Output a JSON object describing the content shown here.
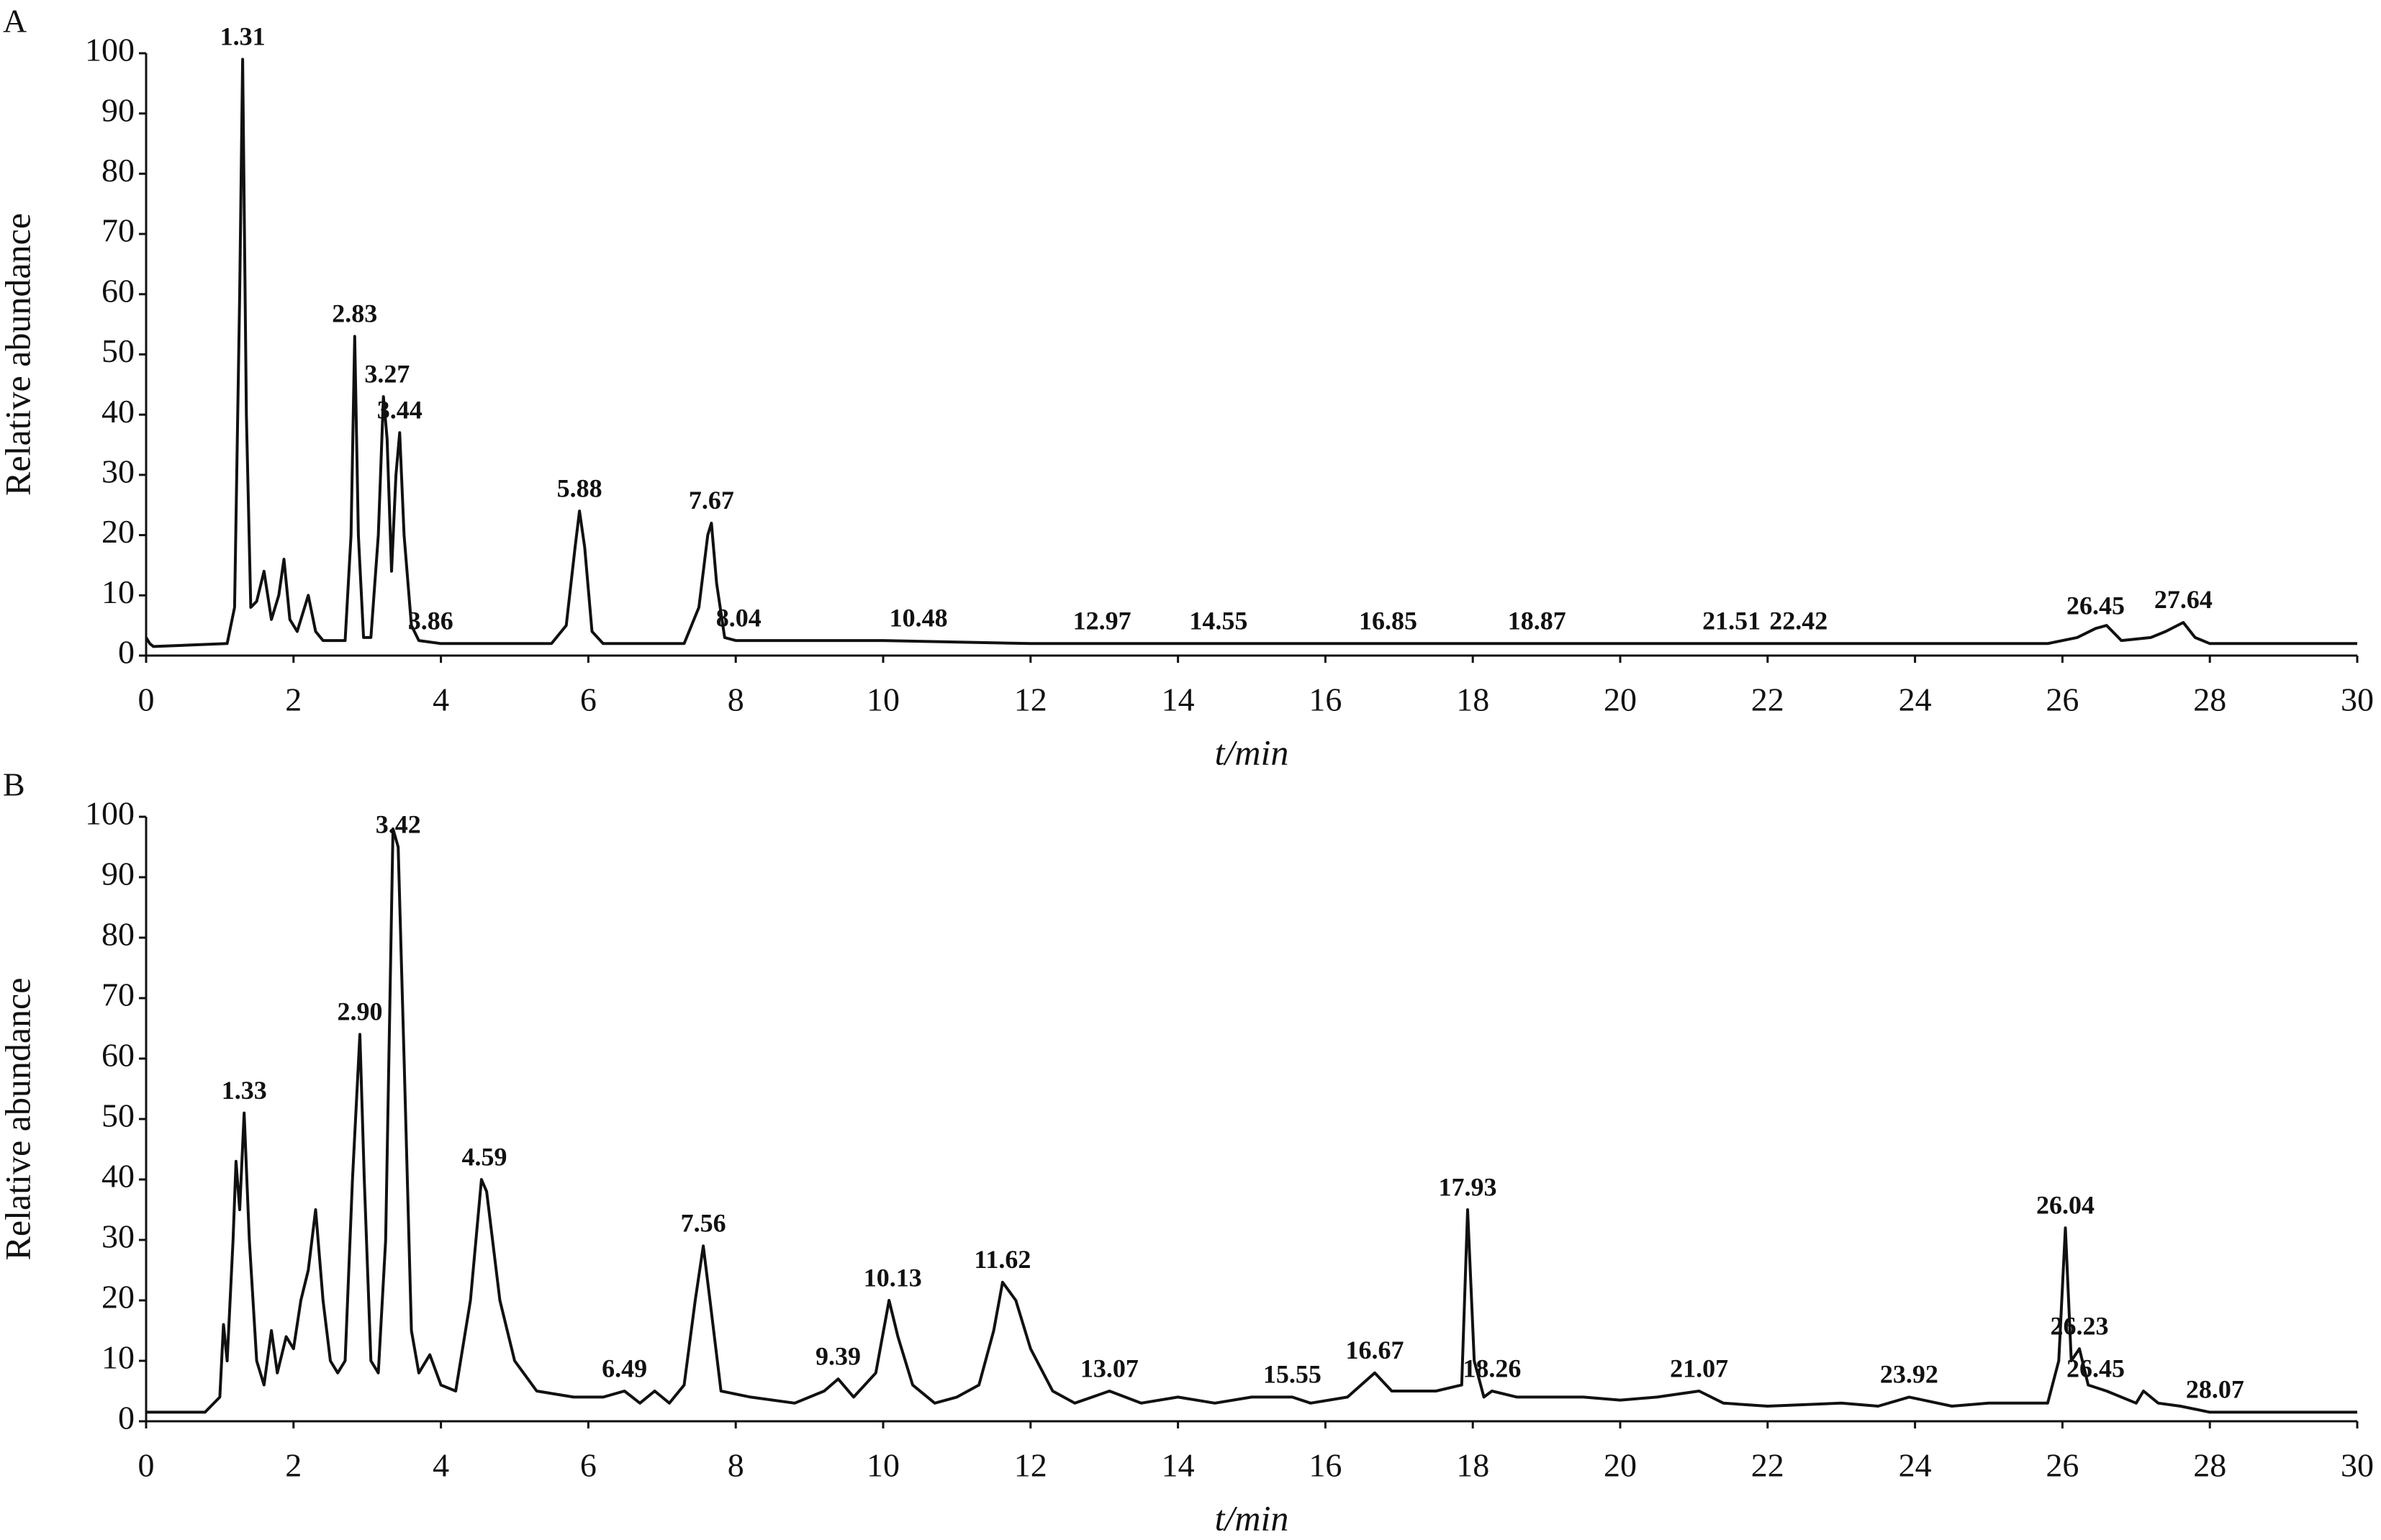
{
  "chart_data": [
    {
      "type": "line",
      "panel": "A",
      "xlabel": "t/min",
      "ylabel": "Relative abundance",
      "xlim": [
        0,
        30
      ],
      "xticks": [
        0,
        2,
        4,
        6,
        8,
        10,
        12,
        14,
        16,
        18,
        20,
        22,
        24,
        26,
        28,
        30
      ],
      "ylim": [
        0,
        100
      ],
      "yticks": [
        0,
        10,
        20,
        30,
        40,
        50,
        60,
        70,
        80,
        90,
        100
      ],
      "color": "#111111",
      "x": [
        0,
        0.05,
        0.1,
        1.1,
        1.2,
        1.27,
        1.31,
        1.36,
        1.42,
        1.5,
        1.6,
        1.7,
        1.8,
        1.87,
        1.95,
        2.05,
        2.2,
        2.3,
        2.4,
        2.7,
        2.78,
        2.83,
        2.88,
        2.95,
        3.05,
        3.15,
        3.22,
        3.27,
        3.33,
        3.39,
        3.44,
        3.5,
        3.6,
        3.7,
        4,
        5.5,
        5.7,
        5.82,
        5.88,
        5.95,
        6.05,
        6.2,
        7.3,
        7.5,
        7.62,
        7.67,
        7.74,
        7.85,
        8,
        10,
        12,
        14,
        16,
        18,
        20,
        22,
        24,
        25.8,
        26.2,
        26.45,
        26.6,
        26.8,
        27.2,
        27.4,
        27.64,
        27.8,
        28,
        30
      ],
      "values": [
        3,
        2,
        1.5,
        2,
        8,
        60,
        99,
        40,
        8,
        9,
        14,
        6,
        10,
        16,
        6,
        4,
        10,
        4,
        2.5,
        2.5,
        20,
        53,
        20,
        3,
        3,
        20,
        43,
        36,
        14,
        30,
        37,
        20,
        5,
        2.5,
        2,
        2,
        5,
        18,
        24,
        18,
        4,
        2,
        2,
        8,
        20,
        22,
        12,
        3,
        2.5,
        2.5,
        2,
        2,
        2,
        2,
        2,
        2,
        2,
        2,
        3,
        4.5,
        5,
        2.5,
        3,
        4,
        5.5,
        3,
        2,
        2
      ],
      "peak_labels": [
        {
          "x": 1.31,
          "y": 99,
          "label": "1.31"
        },
        {
          "x": 2.83,
          "y": 53,
          "label": "2.83"
        },
        {
          "x": 3.27,
          "y": 43,
          "label": "3.27"
        },
        {
          "x": 3.44,
          "y": 37,
          "label": "3.44"
        },
        {
          "x": 3.86,
          "y": 2,
          "label": "3.86"
        },
        {
          "x": 5.88,
          "y": 24,
          "label": "5.88"
        },
        {
          "x": 7.67,
          "y": 22,
          "label": "7.67"
        },
        {
          "x": 8.04,
          "y": 2.5,
          "label": "8.04"
        },
        {
          "x": 10.48,
          "y": 2.5,
          "label": "10.48"
        },
        {
          "x": 12.97,
          "y": 2,
          "label": "12.97"
        },
        {
          "x": 14.55,
          "y": 2,
          "label": "14.55"
        },
        {
          "x": 16.85,
          "y": 2,
          "label": "16.85"
        },
        {
          "x": 18.87,
          "y": 2,
          "label": "18.87"
        },
        {
          "x": 21.51,
          "y": 2,
          "label": "21.51"
        },
        {
          "x": 22.42,
          "y": 2,
          "label": "22.42"
        },
        {
          "x": 26.45,
          "y": 4.5,
          "label": "26.45"
        },
        {
          "x": 27.64,
          "y": 5.5,
          "label": "27.64"
        }
      ]
    },
    {
      "type": "line",
      "panel": "B",
      "xlabel": "t/min",
      "ylabel": "Relative abundance",
      "xlim": [
        0,
        30
      ],
      "xticks": [
        0,
        2,
        4,
        6,
        8,
        10,
        12,
        14,
        16,
        18,
        20,
        22,
        24,
        26,
        28,
        30
      ],
      "ylim": [
        0,
        100
      ],
      "yticks": [
        0,
        10,
        20,
        30,
        40,
        50,
        60,
        70,
        80,
        90,
        100
      ],
      "color": "#111111",
      "x": [
        0,
        0.8,
        1.0,
        1.05,
        1.1,
        1.18,
        1.22,
        1.27,
        1.33,
        1.4,
        1.5,
        1.6,
        1.7,
        1.78,
        1.9,
        2.0,
        2.1,
        2.2,
        2.3,
        2.4,
        2.5,
        2.6,
        2.7,
        2.8,
        2.9,
        2.96,
        3.05,
        3.15,
        3.25,
        3.35,
        3.42,
        3.5,
        3.6,
        3.7,
        3.85,
        4.0,
        4.2,
        4.4,
        4.55,
        4.62,
        4.8,
        5.0,
        5.3,
        5.8,
        6.2,
        6.49,
        6.7,
        6.9,
        7.1,
        7.3,
        7.45,
        7.56,
        7.65,
        7.8,
        8.2,
        8.8,
        9.2,
        9.39,
        9.6,
        9.9,
        10.08,
        10.2,
        10.4,
        10.7,
        11.0,
        11.3,
        11.5,
        11.62,
        11.8,
        12.0,
        12.3,
        12.6,
        13.07,
        13.5,
        14,
        14.5,
        15,
        15.55,
        15.8,
        16.3,
        16.67,
        16.9,
        17.5,
        17.85,
        17.93,
        18.02,
        18.15,
        18.26,
        18.6,
        19.5,
        20,
        20.5,
        21.07,
        21.4,
        22,
        23,
        23.5,
        23.92,
        24.5,
        25,
        25.8,
        25.95,
        26.04,
        26.12,
        26.23,
        26.35,
        26.6,
        27.0,
        27.1,
        27.3,
        27.6,
        28,
        30
      ],
      "values": [
        1.5,
        1.5,
        4,
        16,
        10,
        30,
        43,
        35,
        51,
        30,
        10,
        6,
        15,
        8,
        14,
        12,
        20,
        25,
        35,
        20,
        10,
        8,
        10,
        40,
        64,
        40,
        10,
        8,
        30,
        98,
        95,
        60,
        15,
        8,
        11,
        6,
        5,
        20,
        40,
        38,
        20,
        10,
        5,
        4,
        4,
        5,
        3,
        5,
        3,
        6,
        20,
        29,
        20,
        5,
        4,
        3,
        5,
        7,
        4,
        8,
        20,
        14,
        6,
        3,
        4,
        6,
        15,
        23,
        20,
        12,
        5,
        3,
        5,
        3,
        4,
        3,
        4,
        4,
        3,
        4,
        8,
        5,
        5,
        6,
        35,
        10,
        4,
        5,
        4,
        4,
        3.5,
        4,
        5,
        3,
        2.5,
        3,
        2.5,
        4,
        2.5,
        3,
        3,
        10,
        32,
        10,
        12,
        6,
        5,
        3,
        5,
        3,
        2.5,
        1.5,
        1.5
      ],
      "peak_labels": [
        {
          "x": 1.33,
          "y": 51,
          "label": "1.33"
        },
        {
          "x": 2.9,
          "y": 64,
          "label": "2.90"
        },
        {
          "x": 3.42,
          "y": 95,
          "label": "3.42"
        },
        {
          "x": 4.59,
          "y": 40,
          "label": "4.59"
        },
        {
          "x": 6.49,
          "y": 5,
          "label": "6.49"
        },
        {
          "x": 7.56,
          "y": 29,
          "label": "7.56"
        },
        {
          "x": 9.39,
          "y": 7,
          "label": "9.39"
        },
        {
          "x": 10.13,
          "y": 20,
          "label": "10.13"
        },
        {
          "x": 11.62,
          "y": 23,
          "label": "11.62"
        },
        {
          "x": 13.07,
          "y": 5,
          "label": "13.07"
        },
        {
          "x": 15.55,
          "y": 4,
          "label": "15.55"
        },
        {
          "x": 16.67,
          "y": 8,
          "label": "16.67"
        },
        {
          "x": 17.93,
          "y": 35,
          "label": "17.93"
        },
        {
          "x": 18.26,
          "y": 5,
          "label": "18.26"
        },
        {
          "x": 21.07,
          "y": 5,
          "label": "21.07"
        },
        {
          "x": 23.92,
          "y": 4,
          "label": "23.92"
        },
        {
          "x": 26.04,
          "y": 32,
          "label": "26.04"
        },
        {
          "x": 26.23,
          "y": 12,
          "label": "26.23"
        },
        {
          "x": 26.45,
          "y": 5,
          "label": "26.45"
        },
        {
          "x": 28.07,
          "y": 1.5,
          "label": "28.07"
        }
      ]
    }
  ]
}
